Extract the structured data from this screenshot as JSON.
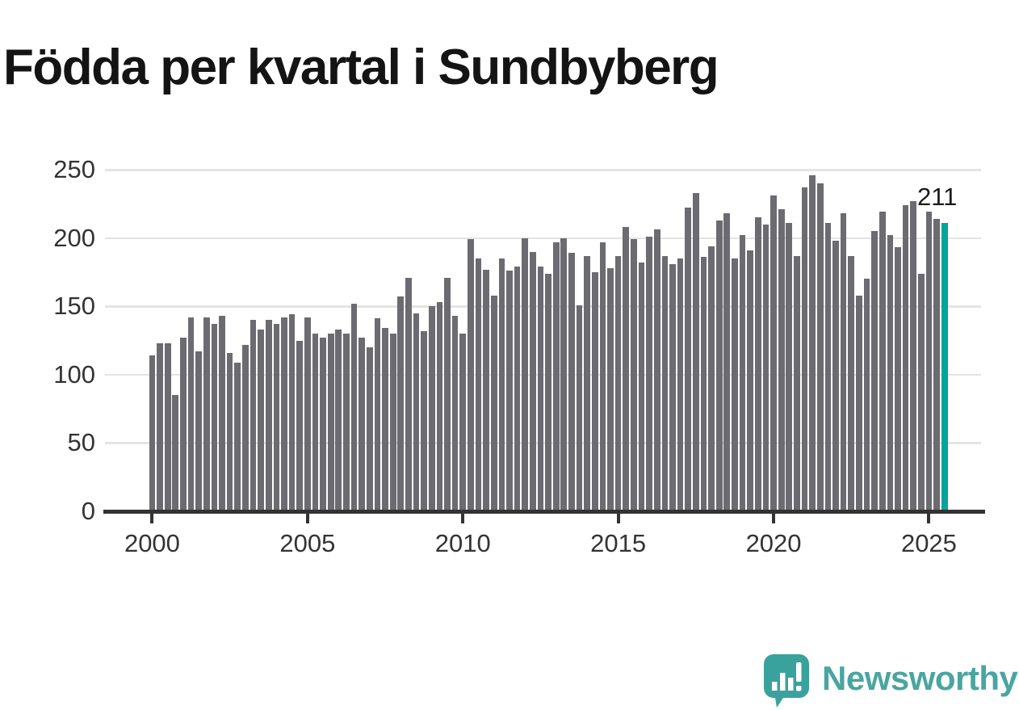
{
  "title": "Födda per kvartal i Sundbyberg",
  "logo": {
    "text": "Newsworthy",
    "icon": "newsworthy-speech-bubble-barchart-icon"
  },
  "colors": {
    "bar": "#6b6b71",
    "highlight": "#00a59c",
    "grid": "#e4e4e4",
    "axis": "#333333",
    "tick_text": "#333333",
    "title_text": "#141414",
    "annotation_text": "#1a1a1a",
    "logo_teal": "#4aa5a1",
    "background": "#ffffff"
  },
  "chart_data": {
    "type": "bar",
    "title": "Födda per kvartal i Sundbyberg",
    "xlabel": "",
    "ylabel": "",
    "frequency": "quarterly",
    "x_start": "2000-Q1",
    "x_end": "2025-Q3",
    "ylim": [
      0,
      250
    ],
    "y_ticks": [
      0,
      50,
      100,
      150,
      200,
      250
    ],
    "x_ticks": [
      2000,
      2005,
      2010,
      2015,
      2020,
      2025
    ],
    "grid": "horizontal",
    "legend": "none",
    "values": [
      114,
      123,
      123,
      85,
      127,
      142,
      117,
      142,
      137,
      143,
      116,
      109,
      122,
      140,
      133,
      140,
      137,
      142,
      144,
      125,
      142,
      130,
      127,
      130,
      133,
      130,
      152,
      127,
      120,
      141,
      134,
      130,
      157,
      171,
      145,
      132,
      150,
      153,
      171,
      143,
      130,
      199,
      185,
      177,
      158,
      185,
      176,
      179,
      200,
      190,
      179,
      174,
      197,
      200,
      189,
      151,
      187,
      175,
      197,
      178,
      187,
      208,
      199,
      182,
      201,
      206,
      187,
      181,
      185,
      222,
      233,
      186,
      194,
      213,
      218,
      185,
      202,
      191,
      215,
      210,
      231,
      221,
      211,
      187,
      237,
      246,
      240,
      211,
      198,
      218,
      187,
      158,
      170,
      205,
      219,
      202,
      193,
      224,
      227,
      174,
      219,
      214,
      211
    ],
    "highlight": {
      "index": 102,
      "quarter": "2025-Q3",
      "value": 211,
      "label": "211"
    }
  }
}
